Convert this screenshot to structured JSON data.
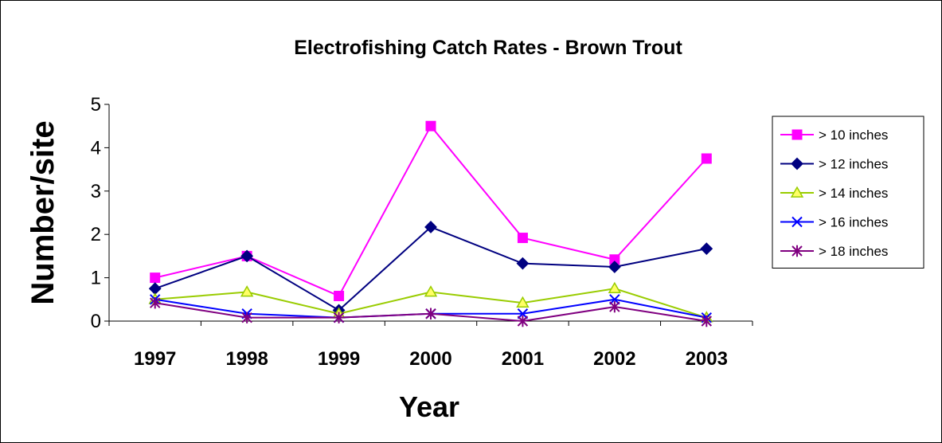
{
  "chart_data": {
    "type": "line",
    "title": "Electrofishing Catch Rates - Brown Trout",
    "xlabel": "Year",
    "ylabel": "Number/site",
    "categories": [
      "1997",
      "1998",
      "1999",
      "2000",
      "2001",
      "2002",
      "2003"
    ],
    "ylim": [
      0,
      5
    ],
    "yticks": [
      0,
      1,
      2,
      3,
      4,
      5
    ],
    "grid": false,
    "legend_position": "right",
    "series": [
      {
        "name": "> 10 inches",
        "color": "#ff00ff",
        "marker": "square",
        "values": [
          1.0,
          1.5,
          0.58,
          4.5,
          1.92,
          1.42,
          3.75
        ]
      },
      {
        "name": "> 12 inches",
        "color": "#000080",
        "marker": "diamond",
        "values": [
          0.75,
          1.5,
          0.25,
          2.17,
          1.33,
          1.25,
          1.67
        ]
      },
      {
        "name": "> 14 inches",
        "color": "#99cc00",
        "marker": "triangle",
        "values": [
          0.5,
          0.67,
          0.17,
          0.67,
          0.42,
          0.75,
          0.08
        ]
      },
      {
        "name": "> 16 inches",
        "color": "#0000ff",
        "marker": "x",
        "values": [
          0.5,
          0.17,
          0.08,
          0.17,
          0.17,
          0.5,
          0.08
        ]
      },
      {
        "name": "> 18 inches",
        "color": "#800080",
        "marker": "star",
        "values": [
          0.42,
          0.08,
          0.08,
          0.17,
          0.0,
          0.33,
          0.0
        ]
      }
    ]
  }
}
